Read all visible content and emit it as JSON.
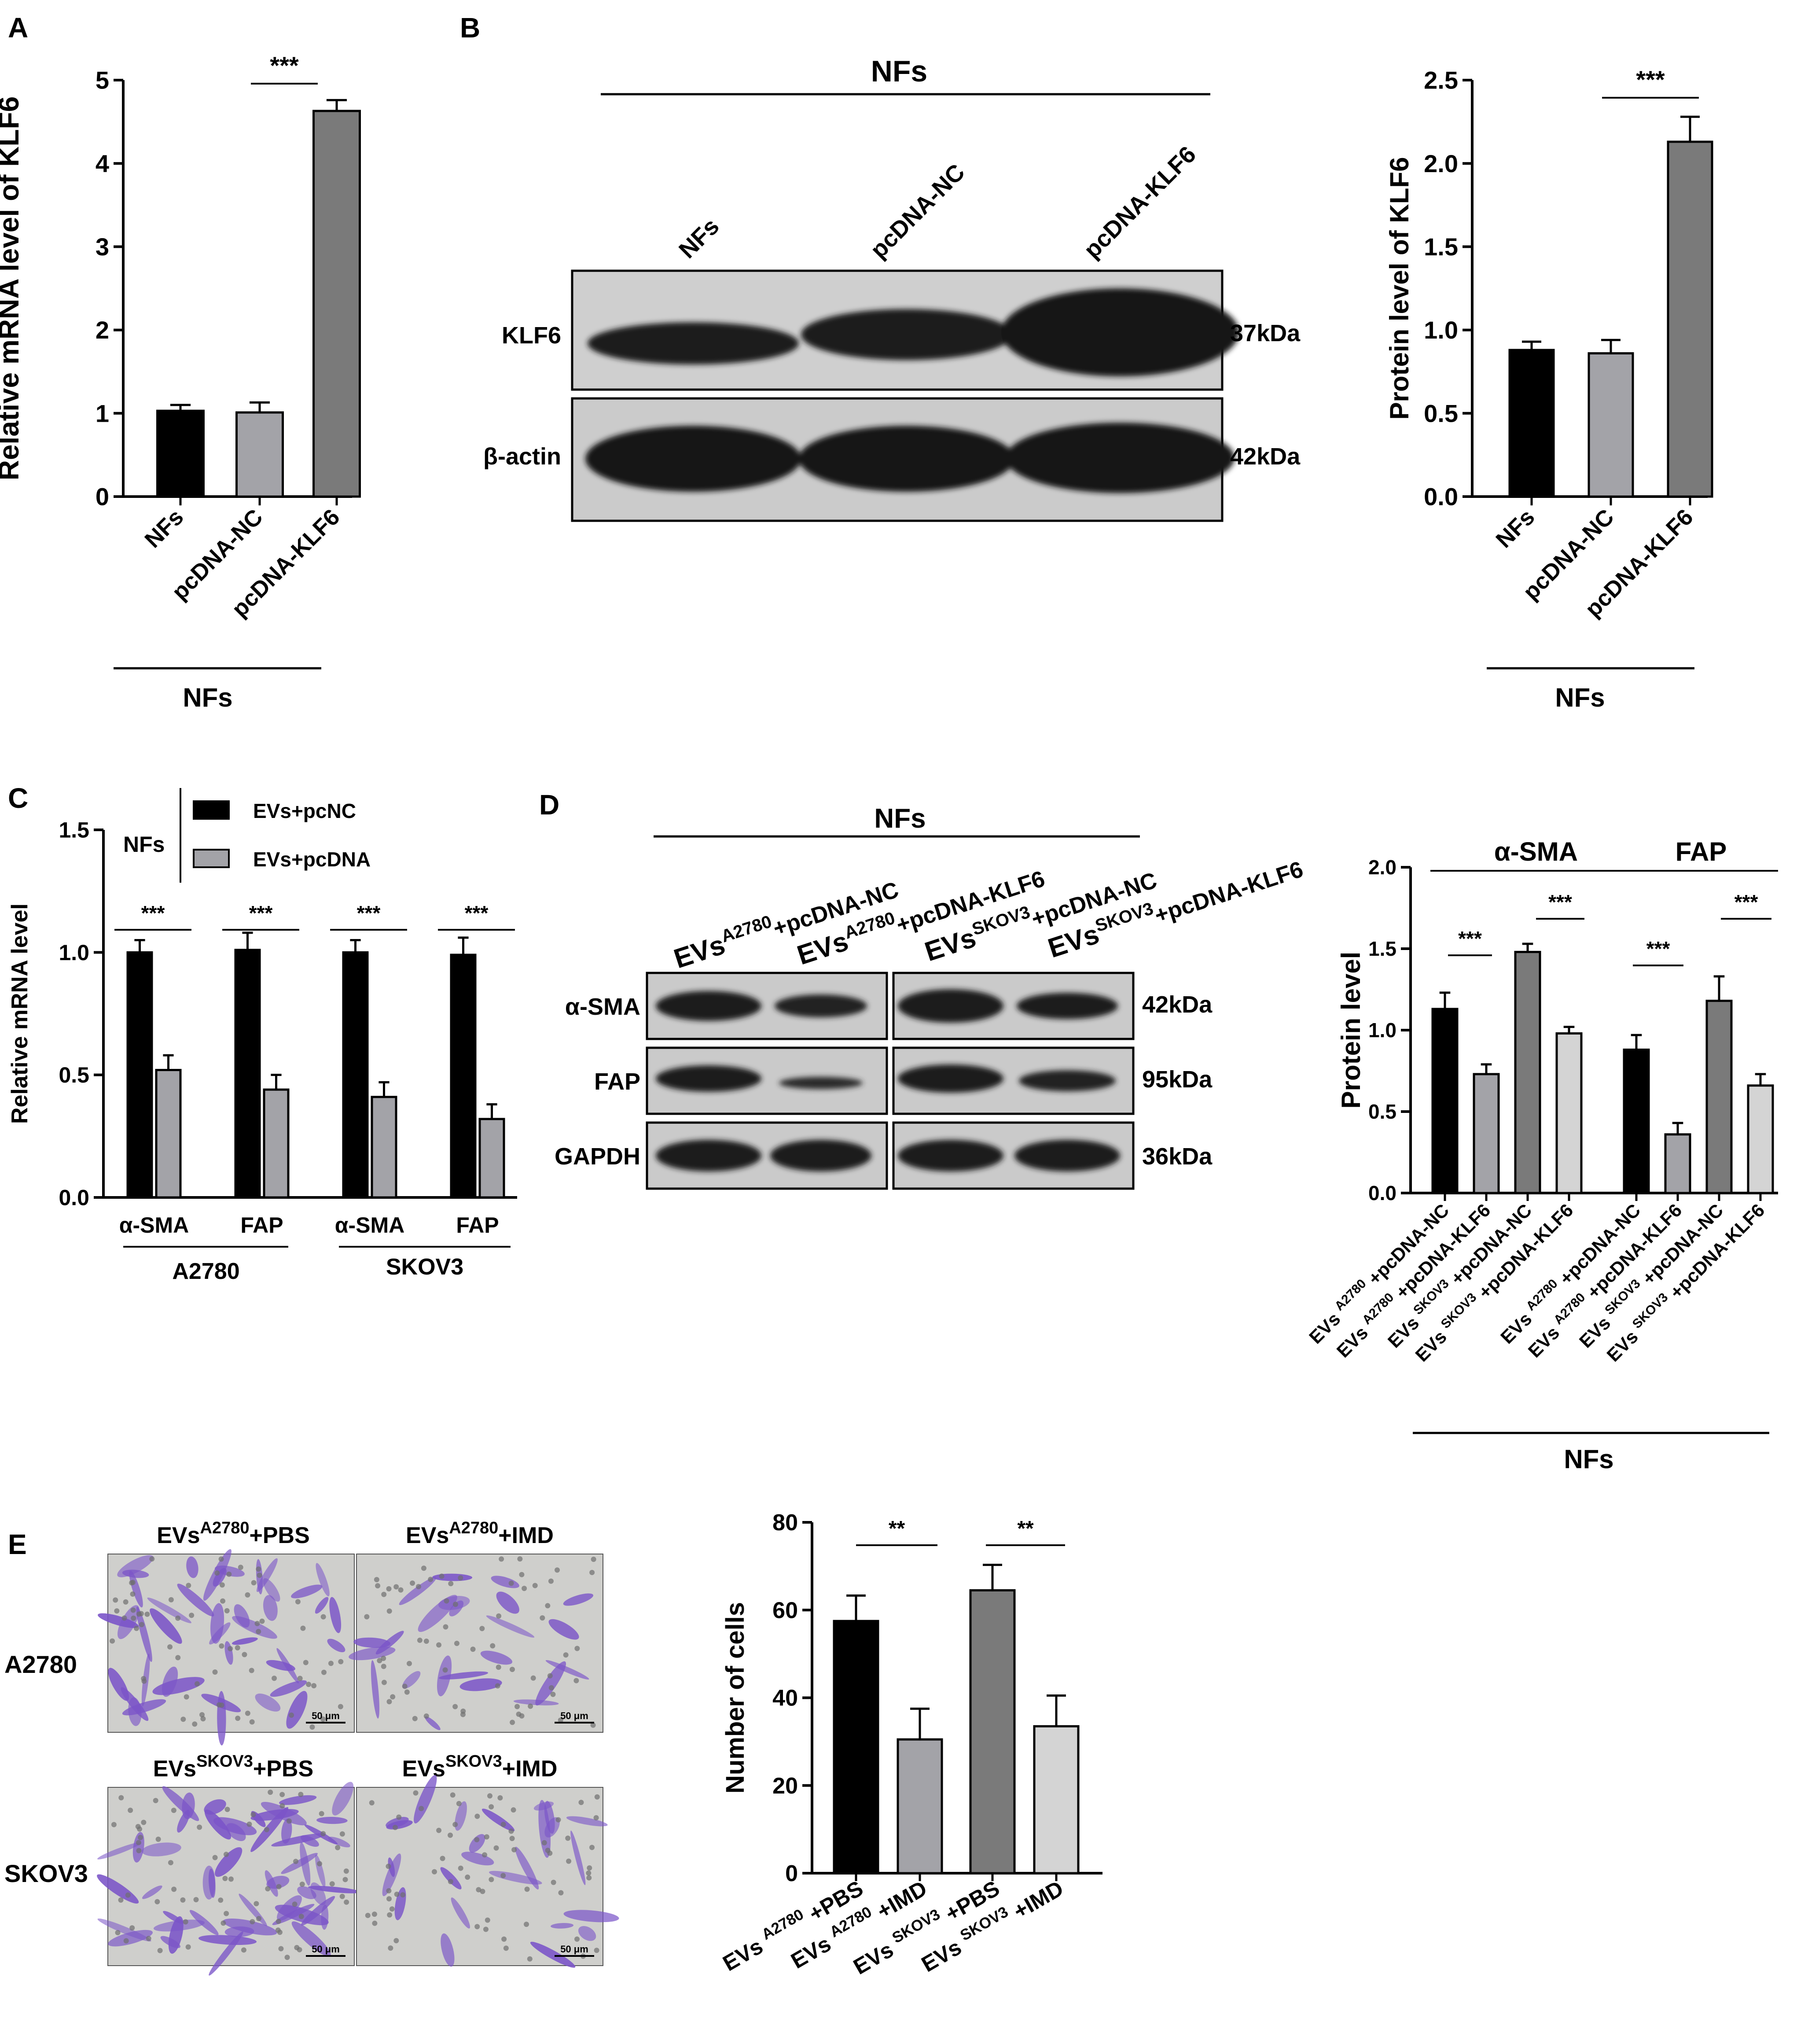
{
  "panel_letters": {
    "A": "A",
    "B": "B",
    "C": "C",
    "D": "D",
    "E": "E"
  },
  "colors": {
    "black": "#000000",
    "gray_light": "#a3a3a8",
    "gray_dark": "#7a7a7a",
    "gray_pale": "#d4d4d4",
    "blot_bg": "#c9c9c9",
    "band": "#1a1a1a",
    "stain": "#7b55c8",
    "micro_bg": "#cfcfcc"
  },
  "panel_b_blot": {
    "group_label": "NFs",
    "lanes": [
      "NFs",
      "pcDNA-NC",
      "pcDNA-KLF6"
    ],
    "rows": [
      {
        "name": "KLF6",
        "kda": "37kDa"
      },
      {
        "name": "β-actin",
        "kda": "42kDa"
      }
    ]
  },
  "panel_d_blot": {
    "group_label": "NFs",
    "lanes": [
      {
        "main": "EVs",
        "sup": "A2780",
        "rest": "+pcDNA-NC"
      },
      {
        "main": "EVs",
        "sup": "A2780",
        "rest": "+pcDNA-KLF6"
      },
      {
        "main": "EVs",
        "sup": "SKOV3",
        "rest": "+pcDNA-NC"
      },
      {
        "main": "EVs",
        "sup": "SKOV3",
        "rest": "+pcDNA-KLF6"
      }
    ],
    "rows": [
      {
        "name": "α-SMA",
        "kda": "42kDa"
      },
      {
        "name": "FAP",
        "kda": "95kDa"
      },
      {
        "name": "GAPDH",
        "kda": "36kDa"
      }
    ]
  },
  "panel_e_images": {
    "row_labels": [
      "A2780",
      "SKOV3"
    ],
    "col_labels": [
      {
        "main": "EVs",
        "sup": "A2780",
        "rest": "+PBS"
      },
      {
        "main": "EVs",
        "sup": "A2780",
        "rest": "+IMD"
      },
      {
        "main": "EVs",
        "sup": "SKOV3",
        "rest": "+PBS"
      },
      {
        "main": "EVs",
        "sup": "SKOV3",
        "rest": "+IMD"
      }
    ],
    "scale_bar": "50 μm"
  },
  "chart_data": [
    {
      "id": "A",
      "type": "bar",
      "ylabel": "Relative mRNA level of KLF6",
      "ylim": [
        0,
        5
      ],
      "yticks": [
        "0",
        "1",
        "2",
        "3",
        "4",
        "5"
      ],
      "categories": [
        "NFs",
        "pcDNA-NC",
        "pcDNA-KLF6"
      ],
      "values": [
        1.03,
        1.01,
        4.63
      ],
      "errors": [
        0.07,
        0.12,
        0.13
      ],
      "bar_colors": [
        "#000000",
        "#a3a3a8",
        "#7a7a7a"
      ],
      "group_label": "NFs",
      "significance": [
        {
          "from": 1,
          "to": 2,
          "label": "***"
        }
      ]
    },
    {
      "id": "B",
      "type": "bar",
      "ylabel": "Protein level of KLF6",
      "ylim": [
        0,
        2.5
      ],
      "yticks": [
        "0.0",
        "0.5",
        "1.0",
        "1.5",
        "2.0",
        "2.5"
      ],
      "categories": [
        "NFs",
        "pcDNA-NC",
        "pcDNA-KLF6"
      ],
      "values": [
        0.88,
        0.86,
        2.13
      ],
      "errors": [
        0.05,
        0.08,
        0.15
      ],
      "bar_colors": [
        "#000000",
        "#a3a3a8",
        "#7a7a7a"
      ],
      "group_label": "NFs",
      "significance": [
        {
          "from": 1,
          "to": 2,
          "label": "***"
        }
      ]
    },
    {
      "id": "C",
      "type": "bar",
      "ylabel": "Relative mRNA level",
      "ylim": [
        0,
        1.5
      ],
      "yticks": [
        "0.0",
        "0.5",
        "1.0",
        "1.5"
      ],
      "categories": [
        "α-SMA",
        "FAP",
        "α-SMA",
        "FAP"
      ],
      "groups": [
        "A2780",
        "SKOV3"
      ],
      "legend_title": "NFs",
      "series": [
        {
          "name": "EVs+pcNC",
          "color": "#000000",
          "values": [
            1.0,
            1.01,
            1.0,
            0.99
          ],
          "errors": [
            0.05,
            0.07,
            0.05,
            0.07
          ]
        },
        {
          "name": "EVs+pcDNA",
          "color": "#a3a3a8",
          "values": [
            0.52,
            0.44,
            0.41,
            0.32
          ],
          "errors": [
            0.06,
            0.06,
            0.06,
            0.06
          ]
        }
      ],
      "significance": [
        "***",
        "***",
        "***",
        "***"
      ]
    },
    {
      "id": "D",
      "type": "bar",
      "ylabel": "Protein level",
      "ylim": [
        0,
        2.0
      ],
      "yticks": [
        "0.0",
        "0.5",
        "1.0",
        "1.5",
        "2.0"
      ],
      "groups": [
        "α-SMA",
        "FAP"
      ],
      "categories": [
        {
          "main": "EVs",
          "sup": "A2780",
          "rest": "+pcDNA-NC"
        },
        {
          "main": "EVs",
          "sup": "A2780",
          "rest": "+pcDNA-KLF6"
        },
        {
          "main": "EVs",
          "sup": "SKOV3",
          "rest": "+pcDNA-NC"
        },
        {
          "main": "EVs",
          "sup": "SKOV3",
          "rest": "+pcDNA-KLF6"
        }
      ],
      "values": [
        [
          1.13,
          0.73,
          1.48,
          0.98
        ],
        [
          0.88,
          0.36,
          1.18,
          0.66
        ]
      ],
      "errors": [
        [
          0.1,
          0.06,
          0.05,
          0.04
        ],
        [
          0.09,
          0.07,
          0.15,
          0.07
        ]
      ],
      "bar_colors": [
        "#000000",
        "#a3a3a8",
        "#7a7a7a",
        "#d4d4d4"
      ],
      "group_label": "NFs",
      "significance": [
        "***",
        "***",
        "***",
        "***"
      ]
    },
    {
      "id": "E",
      "type": "bar",
      "ylabel": "Number of cells",
      "ylim": [
        0,
        80
      ],
      "yticks": [
        "0",
        "20",
        "40",
        "60",
        "80"
      ],
      "categories": [
        {
          "main": "EVs",
          "sup": "A2780",
          "rest": "+PBS"
        },
        {
          "main": "EVs",
          "sup": "A2780",
          "rest": "+IMD"
        },
        {
          "main": "EVs",
          "sup": "SKOV3",
          "rest": "+PBS"
        },
        {
          "main": "EVs",
          "sup": "SKOV3",
          "rest": "+IMD"
        }
      ],
      "values": [
        57.5,
        30.5,
        64.5,
        33.5
      ],
      "errors": [
        5.8,
        7.0,
        5.8,
        7.0
      ],
      "bar_colors": [
        "#000000",
        "#a3a3a8",
        "#7a7a7a",
        "#d4d4d4"
      ],
      "significance": [
        "**",
        "**"
      ]
    }
  ]
}
